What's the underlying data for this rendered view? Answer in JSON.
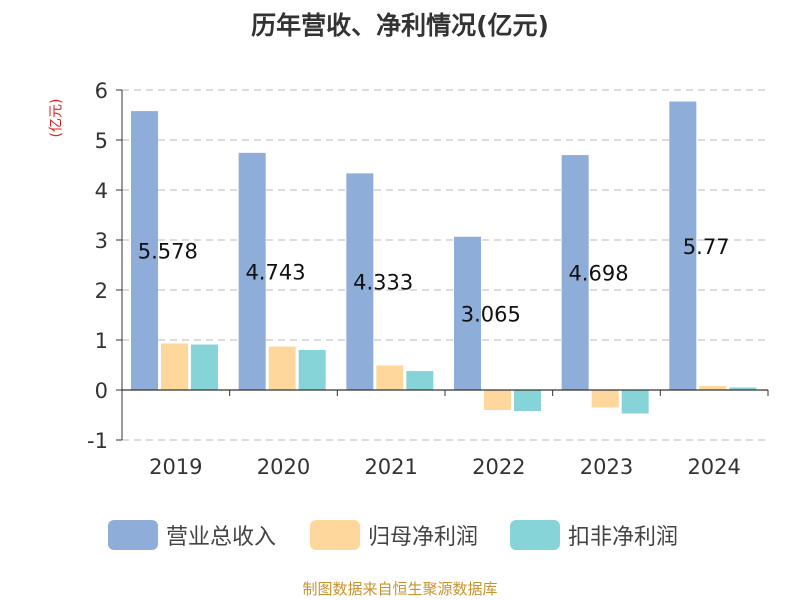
{
  "title": "历年营收、净利情况(亿元)",
  "unit_label": "(亿元)",
  "source": "制图数据来自恒生聚源数据库",
  "colors": {
    "revenue": "#8eadd9",
    "net_profit": "#fdd79c",
    "deducted_net_profit": "#86d4d8",
    "grid": "#c8c8c8",
    "axis": "#333333",
    "unit_red": "#e02020",
    "source_gold": "#c8932e"
  },
  "chart_data": {
    "type": "bar",
    "title": "历年营收、净利情况(亿元)",
    "ylabel": "(亿元)",
    "categories": [
      "2019",
      "2020",
      "2021",
      "2022",
      "2023",
      "2024"
    ],
    "series": [
      {
        "name": "营业总收入",
        "values": [
          5.578,
          4.743,
          4.333,
          3.065,
          4.698,
          5.77
        ]
      },
      {
        "name": "归母净利润",
        "values": [
          0.93,
          0.87,
          0.49,
          -0.4,
          -0.35,
          0.08
        ]
      },
      {
        "name": "扣非净利润",
        "values": [
          0.91,
          0.8,
          0.38,
          -0.42,
          -0.47,
          0.05
        ]
      }
    ],
    "data_labels": [
      "5.578",
      "4.743",
      "4.333",
      "3.065",
      "4.698",
      "5.77"
    ],
    "ylim": [
      -1,
      6
    ],
    "yticks": [
      "-1",
      "0",
      "1",
      "2",
      "3",
      "4",
      "5",
      "6"
    ],
    "grid": true,
    "legend": "bottom"
  }
}
